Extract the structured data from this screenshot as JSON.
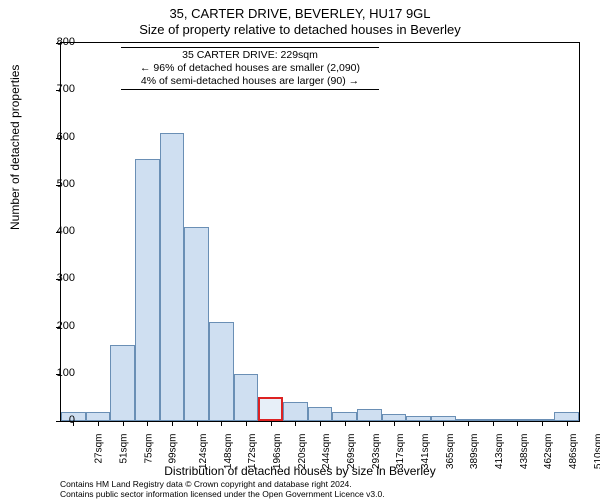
{
  "titles": {
    "line1": "35, CARTER DRIVE, BEVERLEY, HU17 9GL",
    "line2": "Size of property relative to detached houses in Beverley"
  },
  "axes": {
    "ylabel": "Number of detached properties",
    "xlabel": "Distribution of detached houses by size in Beverley",
    "ylim_max": 800,
    "ytick_step": 100,
    "yticks": [
      0,
      100,
      200,
      300,
      400,
      500,
      600,
      700,
      800
    ]
  },
  "histogram": {
    "type": "histogram",
    "bar_fill": "#cfdff1",
    "bar_stroke": "#6a8fb5",
    "highlight_stroke": "#d22",
    "n_bins": 21,
    "categories": [
      "27sqm",
      "51sqm",
      "75sqm",
      "99sqm",
      "124sqm",
      "148sqm",
      "172sqm",
      "196sqm",
      "220sqm",
      "244sqm",
      "269sqm",
      "293sqm",
      "317sqm",
      "341sqm",
      "365sqm",
      "389sqm",
      "413sqm",
      "438sqm",
      "462sqm",
      "486sqm",
      "510sqm"
    ],
    "values": [
      20,
      20,
      160,
      555,
      610,
      410,
      210,
      100,
      50,
      40,
      30,
      20,
      25,
      15,
      10,
      10,
      5,
      5,
      2,
      2,
      20
    ],
    "highlight_index": 8
  },
  "annotation": {
    "line1": "35 CARTER DRIVE: 229sqm",
    "line2": "← 96% of detached houses are smaller (2,090)",
    "line3": "4% of semi-detached houses are larger (90) →"
  },
  "footer": {
    "line1": "Contains HM Land Registry data © Crown copyright and database right 2024.",
    "line2": "Contains public sector information licensed under the Open Government Licence v3.0."
  },
  "style": {
    "background": "#ffffff",
    "text_color": "#000000",
    "title_fontsize": 13,
    "axis_label_fontsize": 12,
    "tick_fontsize": 11,
    "xtick_fontsize": 10,
    "annot_fontsize": 10.5,
    "footer_fontsize": 8.5
  }
}
